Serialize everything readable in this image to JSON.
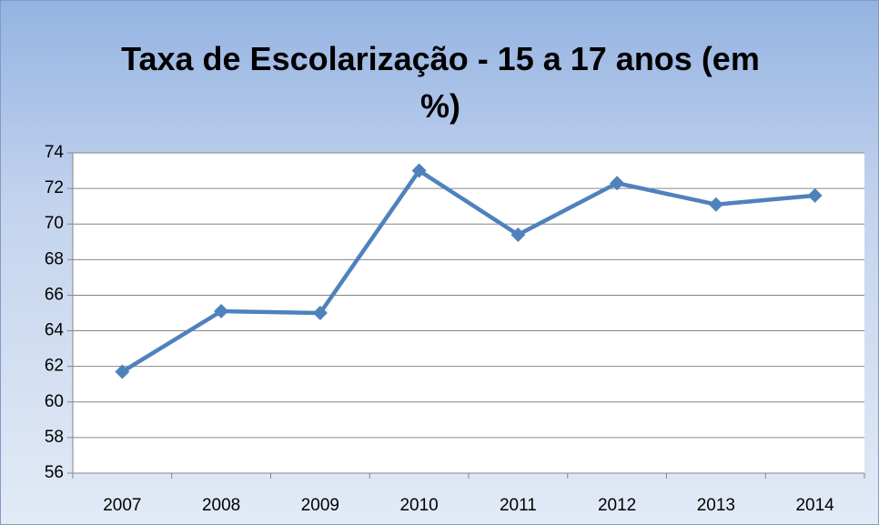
{
  "chart_data": {
    "type": "line",
    "title": "Taxa de Escolarização - 15 a 17 anos (em %)",
    "categories": [
      "2007",
      "2008",
      "2009",
      "2010",
      "2011",
      "2012",
      "2013",
      "2014"
    ],
    "series": [
      {
        "name": "Taxa de Escolarização",
        "color": "#4f81bd",
        "values": [
          61.7,
          65.1,
          65.0,
          73.0,
          69.4,
          72.3,
          71.1,
          71.6
        ]
      }
    ],
    "ylim": [
      56,
      74
    ],
    "yticks": [
      56,
      58,
      60,
      62,
      64,
      66,
      68,
      70,
      72,
      74
    ],
    "grid": true
  }
}
